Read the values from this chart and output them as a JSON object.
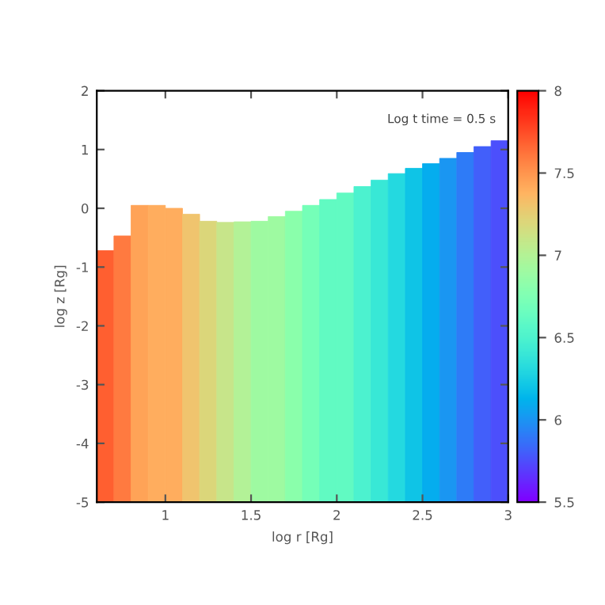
{
  "chart_data": {
    "type": "bar",
    "xlabel": "log r [Rg]",
    "ylabel": "log z [Rg]",
    "annotations": [
      "Log t time = 0.5 s"
    ],
    "x": [
      0.65,
      0.75,
      0.85,
      0.95,
      1.05,
      1.15,
      1.25,
      1.35,
      1.45,
      1.55,
      1.65,
      1.75,
      1.85,
      1.95,
      2.05,
      2.15,
      2.25,
      2.35,
      2.45,
      2.55,
      2.65,
      2.75,
      2.85,
      2.95
    ],
    "base": [
      -5,
      -5,
      -5,
      -5,
      -5,
      -5,
      -5,
      -5,
      -5,
      -5,
      -5,
      -5,
      -5,
      -5,
      -5,
      -5,
      -5,
      -5,
      -5,
      -5,
      -5,
      -5,
      -5,
      -5
    ],
    "values": [
      4.28,
      4.53,
      5.05,
      5.05,
      5.0,
      4.9,
      4.78,
      4.76,
      4.77,
      4.78,
      4.86,
      4.95,
      5.05,
      5.15,
      5.26,
      5.37,
      5.48,
      5.59,
      5.68,
      5.76,
      5.85,
      5.95,
      6.05,
      6.15
    ],
    "colors": [
      "#ff5f30",
      "#ff7a40",
      "#ffa357",
      "#ffad5e",
      "#ffad5e",
      "#f0c46e",
      "#dbd67a",
      "#c7e58a",
      "#b3f297",
      "#9efaa1",
      "#9efaa1",
      "#8affab",
      "#75ffb8",
      "#61fac2",
      "#61fac2",
      "#4cf2cf",
      "#38e8d6",
      "#24d9e0",
      "#0fc4e6",
      "#05adee",
      "#1a96f2",
      "#2e7bf7",
      "#425ffa",
      "#4c4ffc"
    ],
    "xlim": [
      0.6,
      3
    ],
    "ylim": [
      -5,
      2
    ],
    "xticks": [
      1,
      1.5,
      2,
      2.5,
      3
    ],
    "yticks": [
      -5,
      -4,
      -3,
      -2,
      -1,
      0,
      1,
      2
    ],
    "clim": [
      5.5,
      8
    ],
    "cticks": [
      5.5,
      6,
      6.5,
      7,
      7.5,
      8
    ],
    "grid": false
  }
}
